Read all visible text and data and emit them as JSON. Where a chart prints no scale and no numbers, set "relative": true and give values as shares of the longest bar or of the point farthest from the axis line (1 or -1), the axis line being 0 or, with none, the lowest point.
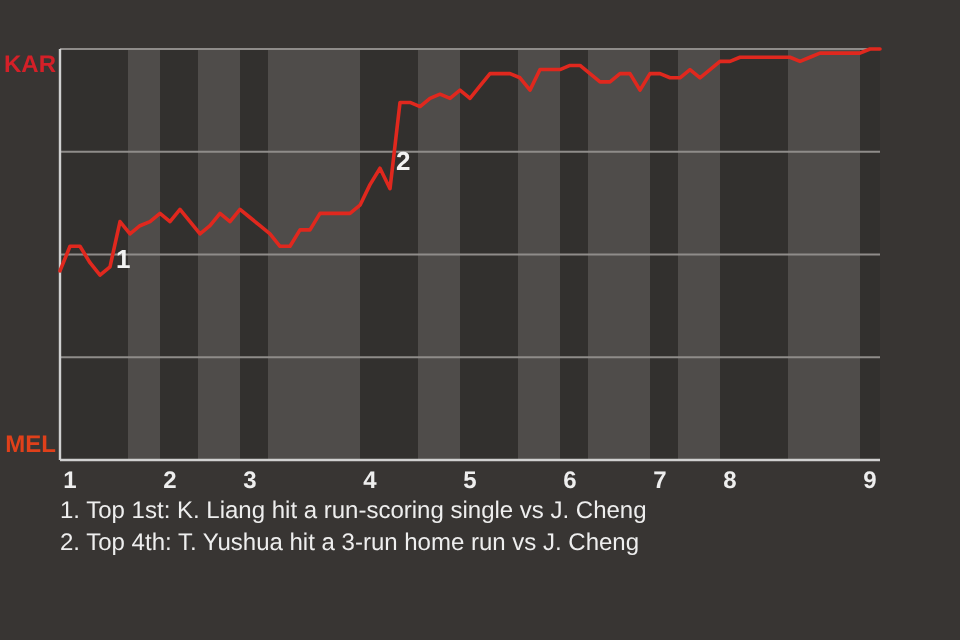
{
  "chart_data": {
    "type": "line",
    "color": "#e0281e",
    "relative": true,
    "categories": [
      null,
      "1",
      null,
      null,
      null,
      null,
      null,
      null,
      null,
      null,
      null,
      "2",
      null,
      null,
      null,
      null,
      null,
      null,
      null,
      "3",
      null,
      null,
      null,
      null,
      null,
      null,
      null,
      null,
      null,
      null,
      null,
      "4",
      null,
      null,
      null,
      null,
      null,
      null,
      null,
      null,
      null,
      "5",
      null,
      null,
      null,
      null,
      null,
      null,
      null,
      null,
      null,
      "6",
      null,
      null,
      null,
      null,
      null,
      null,
      null,
      null,
      "7",
      null,
      null,
      null,
      null,
      null,
      null,
      "8",
      null,
      null,
      null,
      null,
      null,
      null,
      null,
      null,
      null,
      null,
      null,
      null,
      null,
      "9",
      null
    ],
    "values": [
      0.46,
      0.52,
      0.52,
      0.48,
      0.45,
      0.47,
      0.58,
      0.55,
      0.57,
      0.58,
      0.6,
      0.58,
      0.61,
      0.58,
      0.55,
      0.57,
      0.6,
      0.58,
      0.61,
      0.59,
      0.57,
      0.55,
      0.52,
      0.52,
      0.56,
      0.56,
      0.6,
      0.6,
      0.6,
      0.6,
      0.62,
      0.67,
      0.71,
      0.66,
      0.87,
      0.87,
      0.86,
      0.88,
      0.89,
      0.88,
      0.9,
      0.88,
      0.91,
      0.94,
      0.94,
      0.94,
      0.93,
      0.9,
      0.95,
      0.95,
      0.95,
      0.96,
      0.96,
      0.94,
      0.92,
      0.92,
      0.94,
      0.94,
      0.9,
      0.94,
      0.94,
      0.93,
      0.93,
      0.95,
      0.93,
      0.95,
      0.97,
      0.97,
      0.98,
      0.98,
      0.98,
      0.98,
      0.98,
      0.98,
      0.97,
      0.98,
      0.99,
      0.99,
      0.99,
      0.99,
      0.99,
      1.0,
      1.0
    ],
    "marker": "none",
    "line_style": "solid",
    "ref_lines": [
      {
        "axis": "y",
        "value": 0.25,
        "color": "#8f8c8a"
      },
      {
        "axis": "y",
        "value": 0.5,
        "color": "#8f8c8a"
      },
      {
        "axis": "y",
        "value": 0.75,
        "color": "#8f8c8a"
      },
      {
        "axis": "y",
        "value": 1,
        "color": "#8f8c8a"
      }
    ],
    "annotations": [
      "KAR",
      "MEL",
      "1",
      "2",
      "1. Top 1st: K. Liang hit a run-scoring single vs J. Cheng",
      "2. Top 4th: T. Yushua hit a 3-run home run vs J. Cheng"
    ]
  }
}
